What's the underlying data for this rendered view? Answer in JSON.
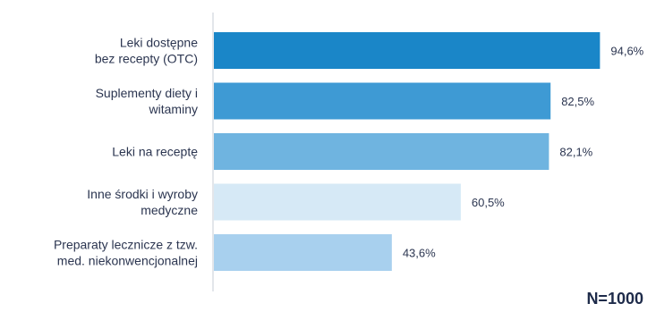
{
  "chart_data": {
    "type": "bar",
    "orientation": "horizontal",
    "categories": [
      [
        "Leki dostępne",
        "bez recepty (OTC)"
      ],
      [
        "Suplementy diety i",
        "witaminy"
      ],
      [
        "Leki na receptę"
      ],
      [
        "Inne środki i wyroby",
        "medyczne"
      ],
      [
        "Preparaty lecznicze z tzw.",
        "med. niekonwencjonalnej"
      ]
    ],
    "values": [
      94.6,
      82.5,
      82.1,
      60.5,
      43.6
    ],
    "value_labels": [
      "94,6%",
      "82,5%",
      "82,1%",
      "60,5%",
      "43,6%"
    ],
    "bar_colors": [
      "#1a86c8",
      "#3e9ad4",
      "#6fb4e0",
      "#d6e9f6",
      "#a8d0ee"
    ],
    "xlim": [
      0,
      100
    ],
    "grid": false,
    "note": "N=1000"
  }
}
